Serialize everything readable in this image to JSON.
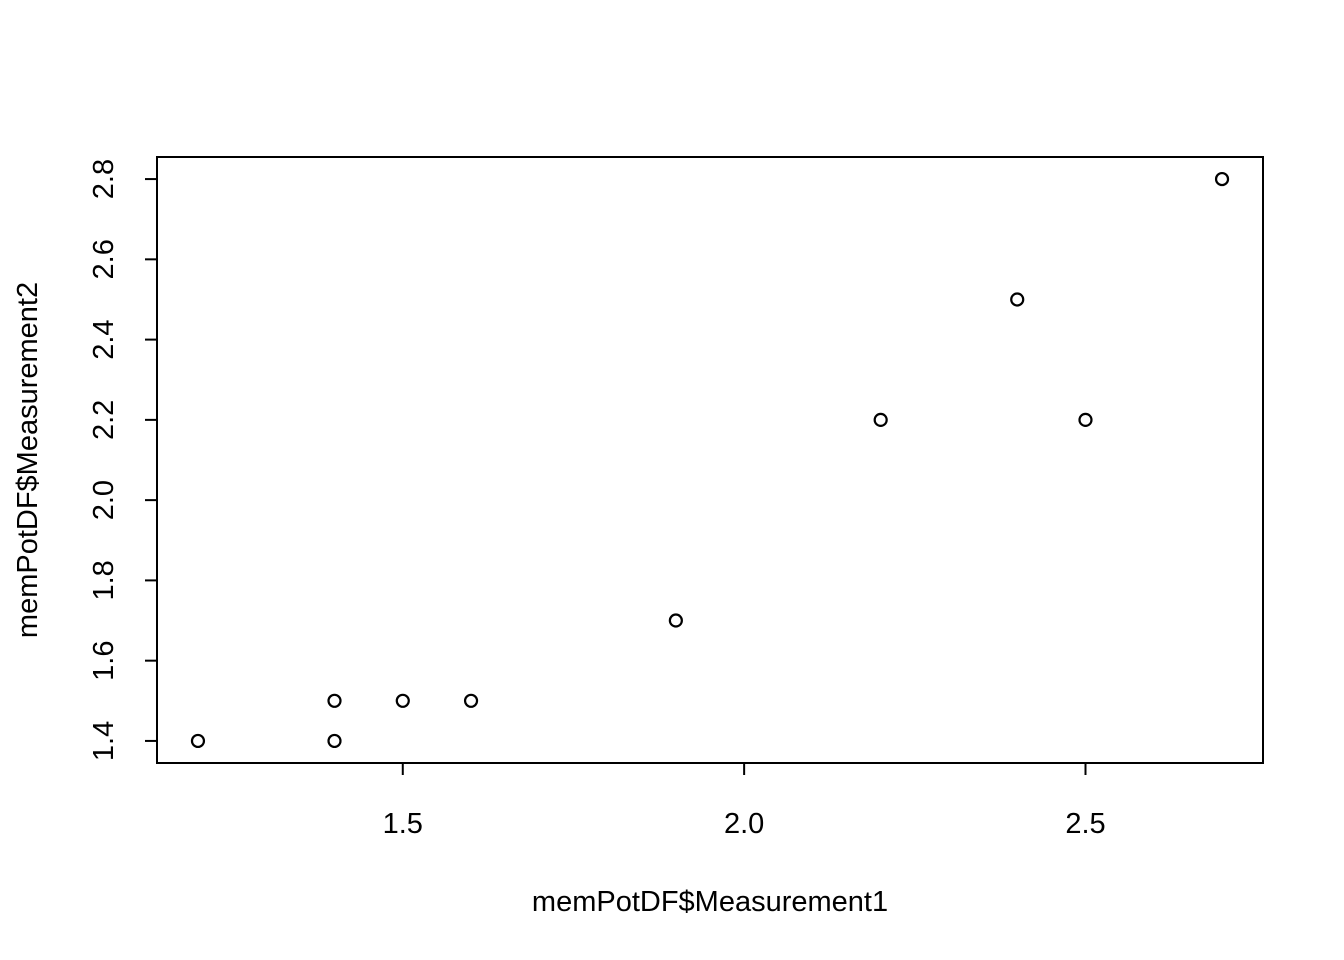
{
  "chart_data": {
    "type": "scatter",
    "title": "",
    "xlabel": "memPotDF$Measurement1",
    "ylabel": "memPotDF$Measurement2",
    "xlim": [
      1.14,
      2.76
    ],
    "ylim": [
      1.345,
      2.855
    ],
    "x_ticks": [
      1.5,
      2.0,
      2.5
    ],
    "x_tick_labels": [
      "1.5",
      "2.0",
      "2.5"
    ],
    "y_ticks": [
      1.4,
      1.6,
      1.8,
      2.0,
      2.2,
      2.4,
      2.6,
      2.8
    ],
    "y_tick_labels": [
      "1.4",
      "1.6",
      "1.8",
      "2.0",
      "2.2",
      "2.4",
      "2.6",
      "2.8"
    ],
    "grid": false,
    "legend": "none",
    "marker": "open-circle",
    "colors": {
      "ink": "#000000",
      "background": "#ffffff"
    },
    "points": [
      {
        "x": 1.2,
        "y": 1.4
      },
      {
        "x": 1.4,
        "y": 1.5
      },
      {
        "x": 1.4,
        "y": 1.4
      },
      {
        "x": 1.5,
        "y": 1.5
      },
      {
        "x": 1.6,
        "y": 1.5
      },
      {
        "x": 1.9,
        "y": 1.7
      },
      {
        "x": 2.2,
        "y": 2.2
      },
      {
        "x": 2.4,
        "y": 2.5
      },
      {
        "x": 2.5,
        "y": 2.2
      },
      {
        "x": 2.7,
        "y": 2.8
      }
    ]
  }
}
